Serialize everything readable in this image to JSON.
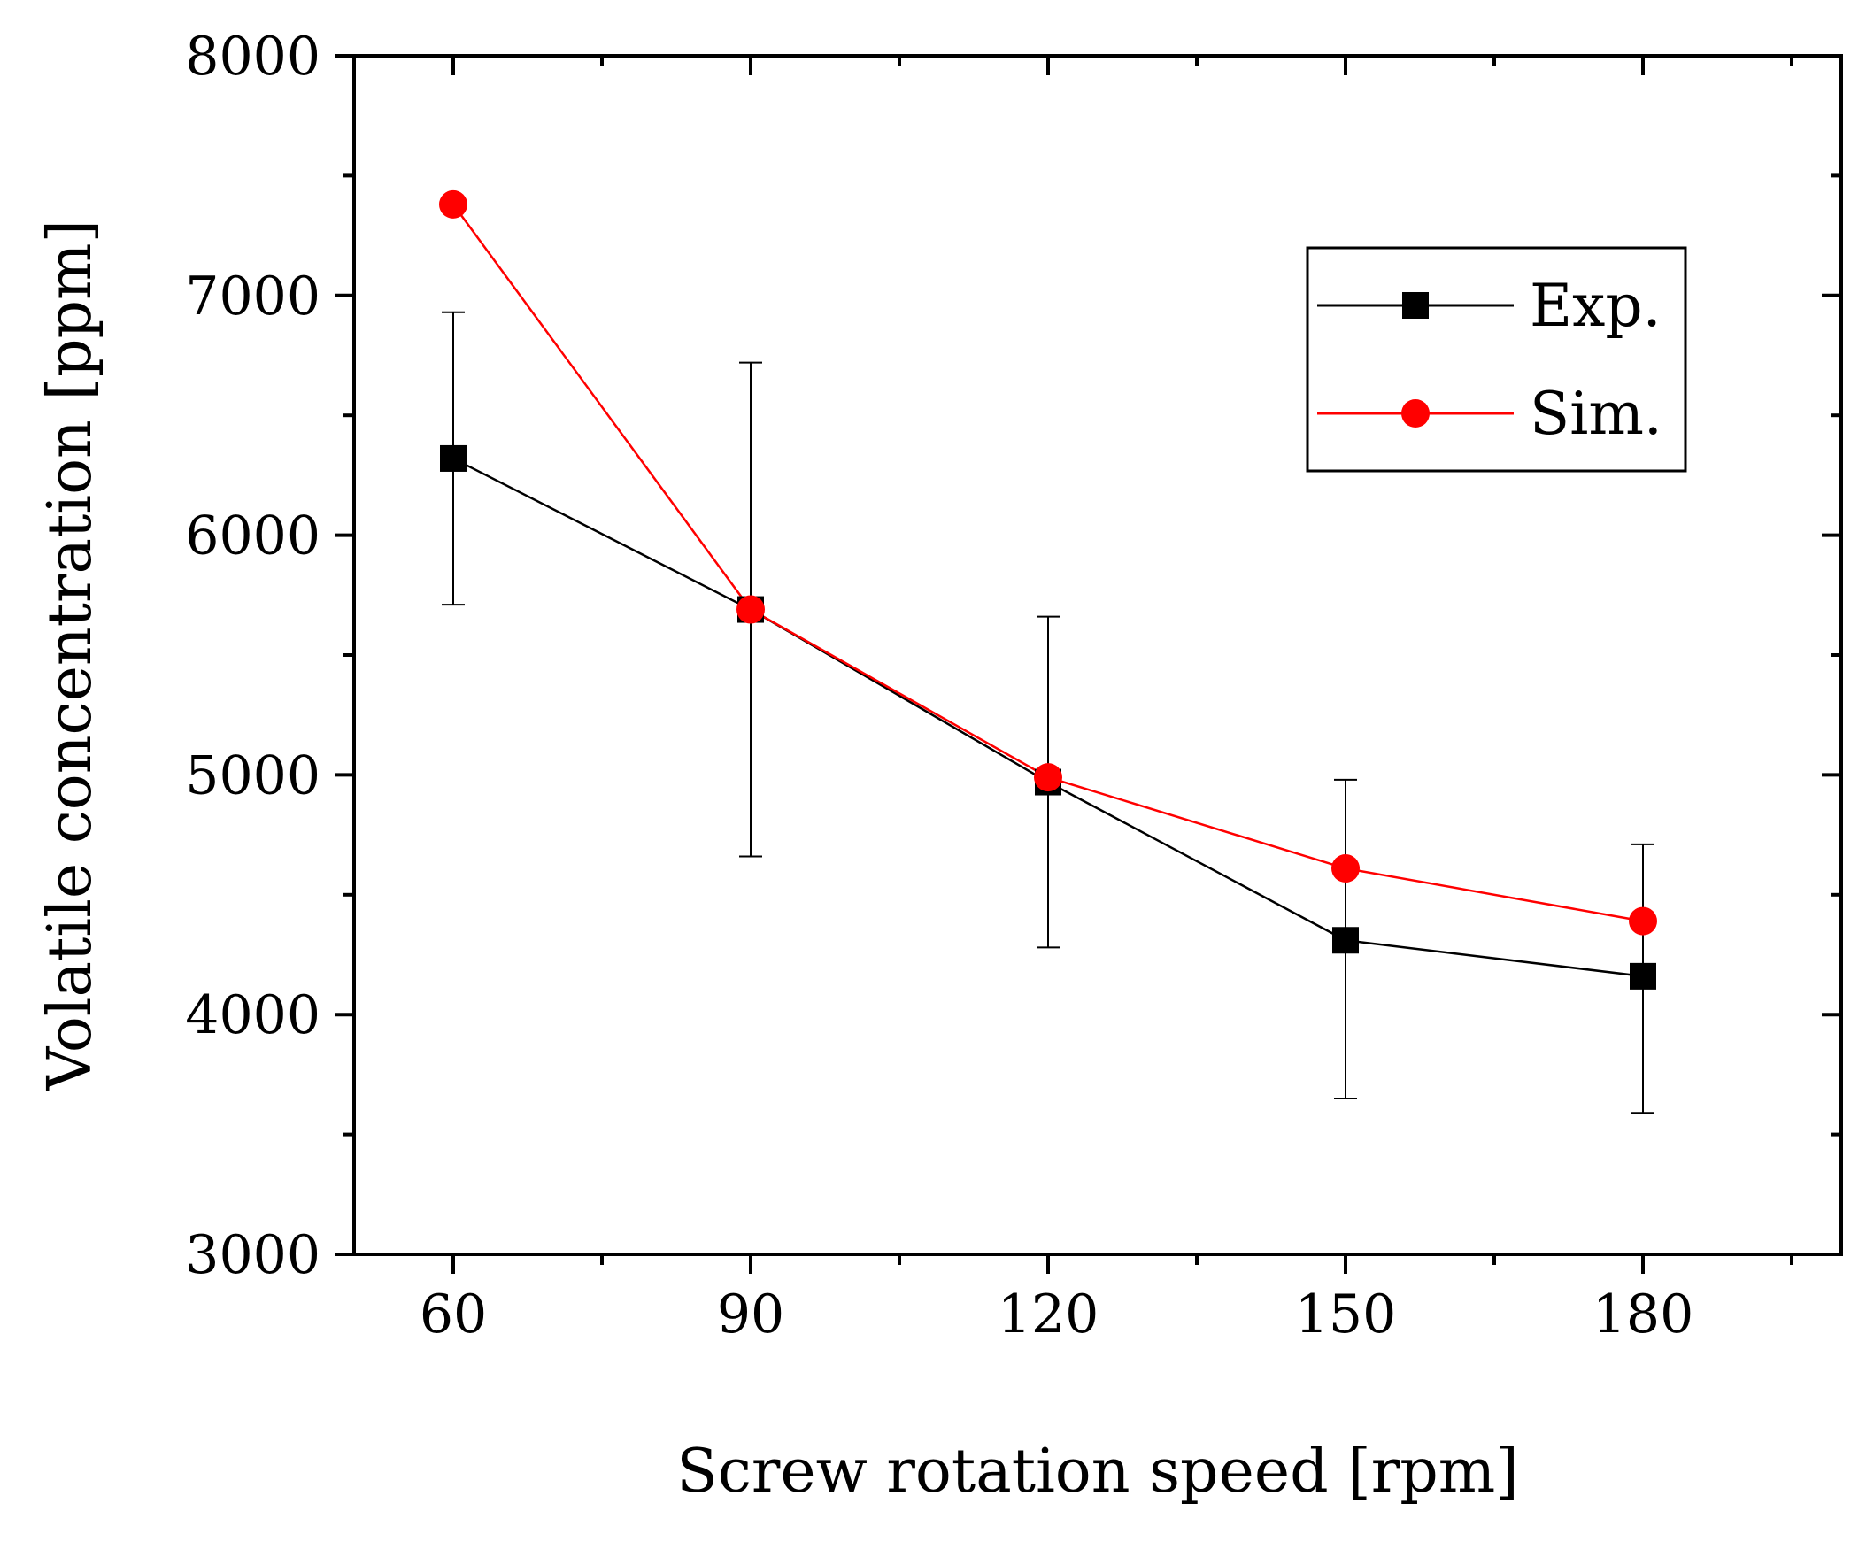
{
  "chart_data": {
    "type": "line",
    "title": "",
    "xlabel": "Screw rotation speed [rpm]",
    "ylabel": "Volatile concentration [ppm]",
    "xlim": [
      50,
      200
    ],
    "ylim": [
      3000,
      8000
    ],
    "x_ticks": [
      60,
      90,
      120,
      150,
      180
    ],
    "x_tick_labels": [
      "60",
      "90",
      "120",
      "150",
      "180"
    ],
    "x_minor_ticks": [
      75,
      105,
      135,
      165,
      195
    ],
    "y_ticks": [
      3000,
      4000,
      5000,
      6000,
      7000,
      8000
    ],
    "y_tick_labels": [
      "3000",
      "4000",
      "5000",
      "6000",
      "7000",
      "8000"
    ],
    "y_minor_ticks": [
      3500,
      4500,
      5500,
      6500,
      7500
    ],
    "grid": false,
    "legend_position": "top-right",
    "x": [
      60,
      90,
      120,
      150,
      180
    ],
    "series": [
      {
        "name": "Exp.",
        "color": "#000000",
        "marker": "square",
        "values": [
          6320,
          5690,
          4970,
          4310,
          4160
        ],
        "error_low": [
          5710,
          4660,
          4280,
          3650,
          3590
        ],
        "error_high": [
          6930,
          6720,
          5660,
          4980,
          4710
        ]
      },
      {
        "name": "Sim.",
        "color": "#ff0000",
        "marker": "circle",
        "values": [
          7380,
          5690,
          4990,
          4610,
          4390
        ]
      }
    ]
  }
}
